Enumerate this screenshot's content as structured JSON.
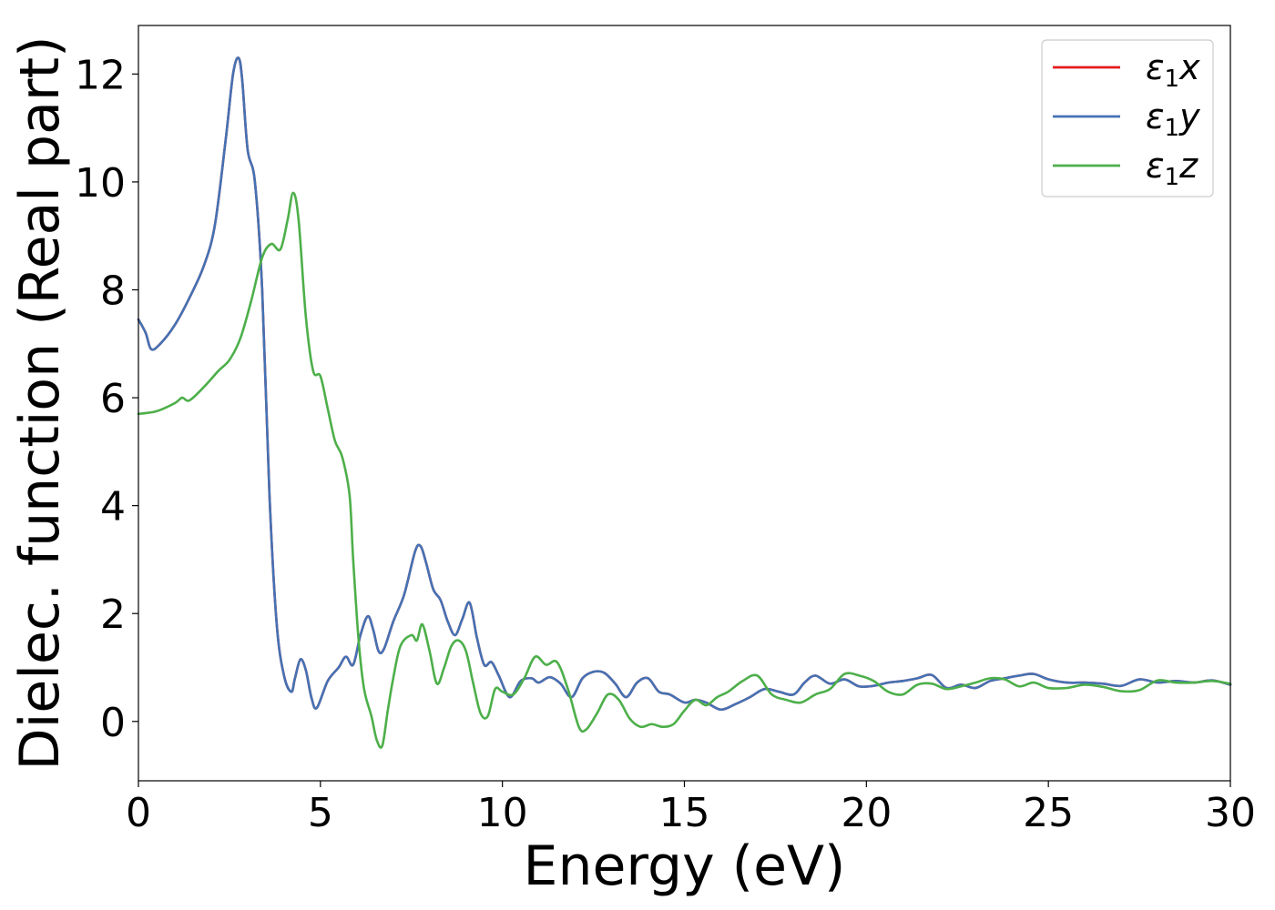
{
  "chart_data": {
    "type": "line",
    "title": "",
    "xlabel": "Energy (eV)",
    "ylabel": "Dielec. function (Real part)",
    "xlim": [
      0,
      30
    ],
    "ylim": [
      -1.1,
      12.9
    ],
    "xticks": [
      0,
      5,
      10,
      15,
      20,
      25,
      30
    ],
    "yticks": [
      0,
      2,
      4,
      6,
      8,
      10,
      12
    ],
    "grid": false,
    "legend_position": "top-right",
    "series": [
      {
        "name": "ε1x",
        "legend_base": "ε",
        "legend_sub": "1",
        "legend_suffix": "x",
        "color": "#e41a1c",
        "x": [
          0,
          0.2,
          0.35,
          0.6,
          1.0,
          1.4,
          1.8,
          2.1,
          2.4,
          2.6,
          2.75,
          2.85,
          3.0,
          3.2,
          3.4,
          3.6,
          3.8,
          4.0,
          4.2,
          4.3,
          4.45,
          4.6,
          4.75,
          4.9,
          5.2,
          5.5,
          5.7,
          5.9,
          6.1,
          6.3,
          6.45,
          6.6,
          6.75,
          7.0,
          7.3,
          7.6,
          7.75,
          7.9,
          8.1,
          8.3,
          8.5,
          8.7,
          8.9,
          9.1,
          9.3,
          9.5,
          9.7,
          9.9,
          10.2,
          10.5,
          10.8,
          11.0,
          11.3,
          11.6,
          11.9,
          12.2,
          12.5,
          12.8,
          13.1,
          13.4,
          13.7,
          14.0,
          14.3,
          14.6,
          15.0,
          15.3,
          15.6,
          16.0,
          16.4,
          16.8,
          17.2,
          17.6,
          18.0,
          18.3,
          18.6,
          19.0,
          19.4,
          19.8,
          20.2,
          20.6,
          21.0,
          21.4,
          21.8,
          22.2,
          22.6,
          23.0,
          23.4,
          23.8,
          24.2,
          24.6,
          25.0,
          25.5,
          26.0,
          26.5,
          27.0,
          27.5,
          28.0,
          28.5,
          29.0,
          29.5,
          30.0
        ],
        "values": [
          7.45,
          7.2,
          6.9,
          7.0,
          7.35,
          7.85,
          8.45,
          9.2,
          10.8,
          12.0,
          12.3,
          11.9,
          10.6,
          10.0,
          8.0,
          4.2,
          1.8,
          0.85,
          0.55,
          0.8,
          1.15,
          0.95,
          0.45,
          0.25,
          0.75,
          1.0,
          1.2,
          1.05,
          1.6,
          1.95,
          1.7,
          1.3,
          1.35,
          1.85,
          2.35,
          3.15,
          3.25,
          2.95,
          2.45,
          2.25,
          1.85,
          1.6,
          1.9,
          2.2,
          1.55,
          1.05,
          1.1,
          0.85,
          0.45,
          0.75,
          0.8,
          0.72,
          0.82,
          0.7,
          0.45,
          0.8,
          0.92,
          0.9,
          0.7,
          0.45,
          0.72,
          0.8,
          0.55,
          0.5,
          0.35,
          0.4,
          0.35,
          0.22,
          0.32,
          0.45,
          0.6,
          0.55,
          0.5,
          0.72,
          0.85,
          0.7,
          0.78,
          0.65,
          0.66,
          0.72,
          0.75,
          0.8,
          0.86,
          0.62,
          0.68,
          0.62,
          0.75,
          0.8,
          0.85,
          0.88,
          0.78,
          0.72,
          0.72,
          0.7,
          0.66,
          0.78,
          0.72,
          0.75,
          0.72,
          0.76,
          0.68
        ]
      },
      {
        "name": "ε1y",
        "legend_base": "ε",
        "legend_sub": "1",
        "legend_suffix": "y",
        "color": "#4472b4",
        "x": [
          0,
          0.2,
          0.35,
          0.6,
          1.0,
          1.4,
          1.8,
          2.1,
          2.4,
          2.6,
          2.75,
          2.85,
          3.0,
          3.2,
          3.4,
          3.6,
          3.8,
          4.0,
          4.2,
          4.3,
          4.45,
          4.6,
          4.75,
          4.9,
          5.2,
          5.5,
          5.7,
          5.9,
          6.1,
          6.3,
          6.45,
          6.6,
          6.75,
          7.0,
          7.3,
          7.6,
          7.75,
          7.9,
          8.1,
          8.3,
          8.5,
          8.7,
          8.9,
          9.1,
          9.3,
          9.5,
          9.7,
          9.9,
          10.2,
          10.5,
          10.8,
          11.0,
          11.3,
          11.6,
          11.9,
          12.2,
          12.5,
          12.8,
          13.1,
          13.4,
          13.7,
          14.0,
          14.3,
          14.6,
          15.0,
          15.3,
          15.6,
          16.0,
          16.4,
          16.8,
          17.2,
          17.6,
          18.0,
          18.3,
          18.6,
          19.0,
          19.4,
          19.8,
          20.2,
          20.6,
          21.0,
          21.4,
          21.8,
          22.2,
          22.6,
          23.0,
          23.4,
          23.8,
          24.2,
          24.6,
          25.0,
          25.5,
          26.0,
          26.5,
          27.0,
          27.5,
          28.0,
          28.5,
          29.0,
          29.5,
          30.0
        ],
        "values": [
          7.45,
          7.2,
          6.9,
          7.0,
          7.35,
          7.85,
          8.45,
          9.2,
          10.8,
          12.0,
          12.3,
          11.9,
          10.6,
          10.0,
          8.0,
          4.2,
          1.8,
          0.85,
          0.55,
          0.8,
          1.15,
          0.95,
          0.45,
          0.25,
          0.75,
          1.0,
          1.2,
          1.05,
          1.6,
          1.95,
          1.7,
          1.3,
          1.35,
          1.85,
          2.35,
          3.15,
          3.25,
          2.95,
          2.45,
          2.25,
          1.85,
          1.6,
          1.9,
          2.2,
          1.55,
          1.05,
          1.1,
          0.85,
          0.45,
          0.75,
          0.8,
          0.72,
          0.82,
          0.7,
          0.45,
          0.8,
          0.92,
          0.9,
          0.7,
          0.45,
          0.72,
          0.8,
          0.55,
          0.5,
          0.35,
          0.4,
          0.35,
          0.22,
          0.32,
          0.45,
          0.6,
          0.55,
          0.5,
          0.72,
          0.85,
          0.7,
          0.78,
          0.65,
          0.66,
          0.72,
          0.75,
          0.8,
          0.86,
          0.62,
          0.68,
          0.62,
          0.75,
          0.8,
          0.85,
          0.88,
          0.78,
          0.72,
          0.72,
          0.7,
          0.66,
          0.78,
          0.72,
          0.75,
          0.72,
          0.76,
          0.68
        ]
      },
      {
        "name": "ε1z",
        "legend_base": "ε",
        "legend_sub": "1",
        "legend_suffix": "z",
        "color": "#4daf4a",
        "x": [
          0,
          0.5,
          1.0,
          1.2,
          1.4,
          1.8,
          2.2,
          2.5,
          2.8,
          3.1,
          3.4,
          3.65,
          3.9,
          4.1,
          4.25,
          4.4,
          4.6,
          4.8,
          5.0,
          5.2,
          5.4,
          5.6,
          5.8,
          5.9,
          6.05,
          6.2,
          6.4,
          6.55,
          6.7,
          6.85,
          7.0,
          7.2,
          7.5,
          7.65,
          7.8,
          8.0,
          8.2,
          8.4,
          8.6,
          8.8,
          9.0,
          9.2,
          9.4,
          9.6,
          9.8,
          10.0,
          10.3,
          10.6,
          10.9,
          11.2,
          11.5,
          11.8,
          12.1,
          12.3,
          12.6,
          12.9,
          13.2,
          13.5,
          13.8,
          14.1,
          14.4,
          14.7,
          15.0,
          15.3,
          15.6,
          15.9,
          16.2,
          16.6,
          17.0,
          17.4,
          17.8,
          18.2,
          18.6,
          19.0,
          19.4,
          19.8,
          20.2,
          20.6,
          21.0,
          21.4,
          21.8,
          22.2,
          22.6,
          23.0,
          23.4,
          23.8,
          24.2,
          24.6,
          25.0,
          25.5,
          26.0,
          26.5,
          27.0,
          27.5,
          28.0,
          28.5,
          29.0,
          29.5,
          30.0
        ],
        "values": [
          5.7,
          5.75,
          5.9,
          6.0,
          5.95,
          6.2,
          6.5,
          6.7,
          7.1,
          7.8,
          8.6,
          8.85,
          8.75,
          9.3,
          9.8,
          9.3,
          7.5,
          6.5,
          6.4,
          5.8,
          5.2,
          4.9,
          4.2,
          3.0,
          1.5,
          0.6,
          0.1,
          -0.35,
          -0.45,
          0.2,
          0.8,
          1.4,
          1.6,
          1.5,
          1.8,
          1.3,
          0.7,
          1.0,
          1.4,
          1.5,
          1.3,
          0.7,
          0.15,
          0.1,
          0.6,
          0.55,
          0.5,
          0.8,
          1.2,
          1.05,
          1.1,
          0.6,
          -0.1,
          -0.15,
          0.15,
          0.5,
          0.4,
          0.05,
          -0.1,
          -0.05,
          -0.1,
          -0.05,
          0.2,
          0.4,
          0.3,
          0.45,
          0.55,
          0.75,
          0.85,
          0.5,
          0.4,
          0.35,
          0.5,
          0.6,
          0.88,
          0.85,
          0.75,
          0.55,
          0.5,
          0.68,
          0.7,
          0.6,
          0.65,
          0.72,
          0.8,
          0.78,
          0.65,
          0.72,
          0.62,
          0.62,
          0.68,
          0.64,
          0.56,
          0.58,
          0.76,
          0.72,
          0.72,
          0.75,
          0.7
        ]
      }
    ]
  }
}
